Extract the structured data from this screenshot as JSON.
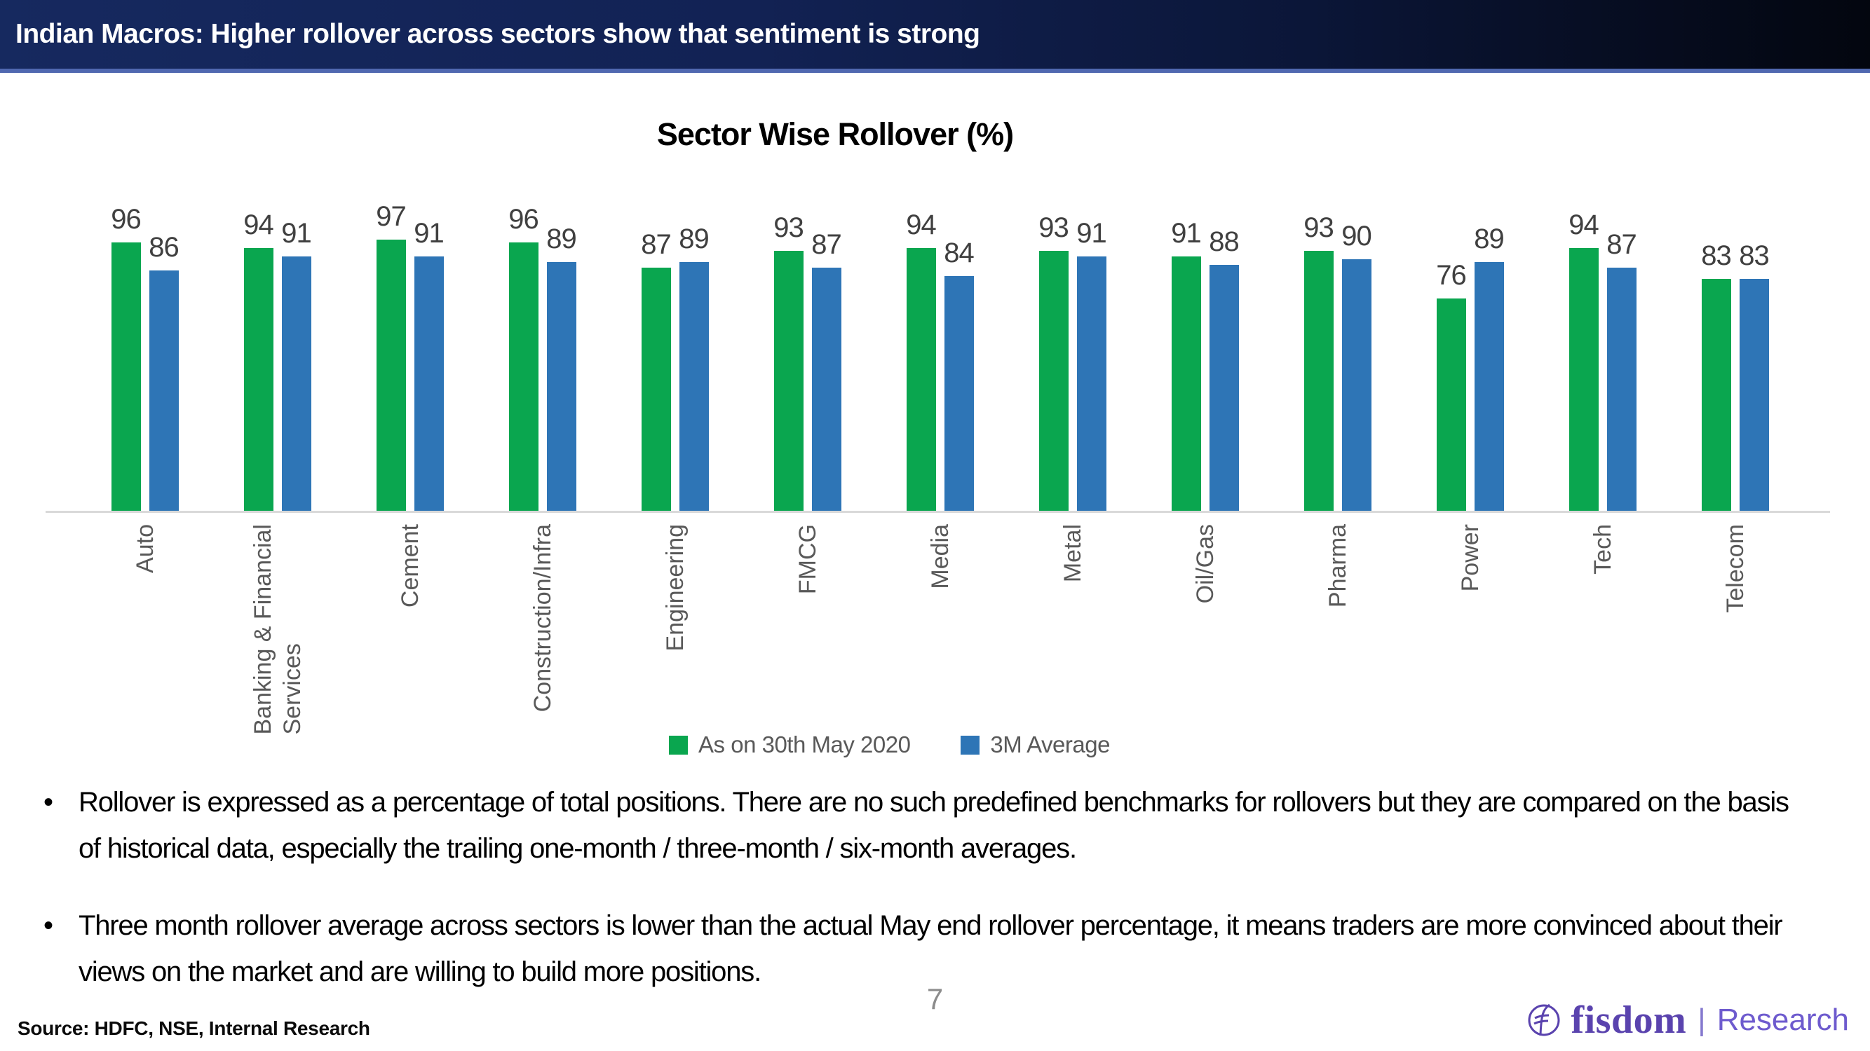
{
  "header": {
    "title": "Indian Macros: Higher rollover across sectors show that sentiment is strong"
  },
  "chart_data": {
    "type": "bar",
    "title": "Sector Wise Rollover (%)",
    "categories": [
      "Auto",
      "Banking & Financial\nServices",
      "Cement",
      "Construction/Infra",
      "Engineering",
      "FMCG",
      "Media",
      "Metal",
      "Oil/Gas",
      "Pharma",
      "Power",
      "Tech",
      "Telecom"
    ],
    "series": [
      {
        "name": "As on 30th May 2020",
        "color": "#0AA64F",
        "values": [
          96,
          94,
          97,
          96,
          87,
          93,
          94,
          93,
          91,
          93,
          76,
          94,
          83
        ]
      },
      {
        "name": "3M Average",
        "color": "#2E75B6",
        "values": [
          86,
          91,
          91,
          89,
          89,
          87,
          84,
          91,
          88,
          90,
          89,
          87,
          83
        ]
      }
    ],
    "ylim": [
      0,
      100
    ],
    "grid": false,
    "data_labels": true,
    "legend_position": "bottom",
    "xlabel": "",
    "ylabel": ""
  },
  "colors": {
    "series_green": "#0AA64F",
    "series_blue": "#2E75B6",
    "header_navy": "#122254",
    "header_border_blue": "#5068B0",
    "axis_line_gray": "#D9D9D9",
    "label_gray": "#404040",
    "axis_text_gray": "#595959",
    "brand_purple": "#5A43AE"
  },
  "bullets": [
    "Rollover is expressed as a percentage of total positions. There are no such predefined benchmarks for rollovers but they are compared on the basis of historical data, especially the trailing one-month / three-month / six-month averages.",
    "Three month rollover average  across sectors is lower than the actual May end rollover percentage, it means traders are more convinced about their views on the market and are willing to build more positions."
  ],
  "footer": {
    "page_number": "7",
    "source": "Source: HDFC, NSE, Internal Research",
    "logo_text": "fisdom",
    "logo_divider": "|",
    "logo_suffix": "Research"
  }
}
